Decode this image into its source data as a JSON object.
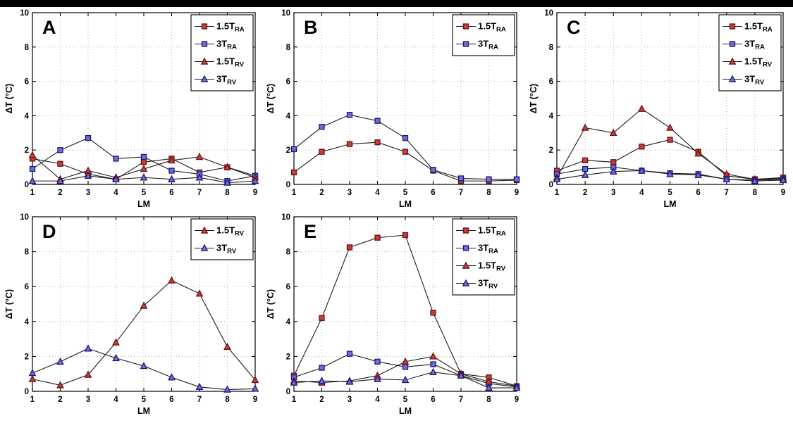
{
  "page": {
    "background": "#ffffff",
    "top_bar_color": "#000000"
  },
  "styles": {
    "line_color": "#1a1a1a",
    "grid_color": "#9f9f9f",
    "axis_color": "#000000",
    "series_styles": {
      "ra15": {
        "marker": "square",
        "fill": "#bf403e",
        "edge": "#6e0f0f",
        "label_main": "1.5T",
        "label_sub": "RA"
      },
      "ra3": {
        "marker": "square",
        "fill": "#6f6fd0",
        "edge": "#16167d",
        "label_main": "3T",
        "label_sub": "RA"
      },
      "rv15": {
        "marker": "triangle",
        "fill": "#bf403e",
        "edge": "#6e0f0f",
        "label_main": "1.5T",
        "label_sub": "RV"
      },
      "rv3": {
        "marker": "triangle",
        "fill": "#6f6fd0",
        "edge": "#16167d",
        "label_main": "3T",
        "label_sub": "RV"
      }
    }
  },
  "chart_data": [
    {
      "id": "A",
      "type": "line",
      "panel_label": "A",
      "xlabel": "LM",
      "ylabel": "ΔT (°C)",
      "x": [
        1,
        2,
        3,
        4,
        5,
        6,
        7,
        8,
        9
      ],
      "xlim": [
        1,
        9
      ],
      "ylim": [
        0,
        10
      ],
      "xticks": [
        1,
        2,
        3,
        4,
        5,
        6,
        7,
        8,
        9
      ],
      "yticks": [
        0,
        2,
        4,
        6,
        8,
        10
      ],
      "grid": true,
      "legend_position": "top-right",
      "series": [
        {
          "name": "1.5T_RA",
          "style": "ra15",
          "values": [
            1.5,
            1.2,
            0.6,
            0.3,
            1.3,
            1.5,
            0.7,
            1.0,
            0.5
          ]
        },
        {
          "name": "3T_RA",
          "style": "ra3",
          "values": [
            0.9,
            2.0,
            2.7,
            1.5,
            1.6,
            0.8,
            0.6,
            0.2,
            0.5
          ]
        },
        {
          "name": "1.5T_RV",
          "style": "rv15",
          "values": [
            1.7,
            0.3,
            0.8,
            0.4,
            0.9,
            1.4,
            1.6,
            1.0,
            0.4
          ]
        },
        {
          "name": "3T_RV",
          "style": "rv3",
          "values": [
            0.2,
            0.2,
            0.5,
            0.3,
            0.4,
            0.3,
            0.4,
            0.1,
            0.2
          ]
        }
      ]
    },
    {
      "id": "B",
      "type": "line",
      "panel_label": "B",
      "xlabel": "LM",
      "ylabel": "ΔT (°C)",
      "x": [
        1,
        2,
        3,
        4,
        5,
        6,
        7,
        8,
        9
      ],
      "xlim": [
        1,
        9
      ],
      "ylim": [
        0,
        10
      ],
      "xticks": [
        1,
        2,
        3,
        4,
        5,
        6,
        7,
        8,
        9
      ],
      "yticks": [
        0,
        2,
        4,
        6,
        8,
        10
      ],
      "grid": true,
      "legend_position": "top-right",
      "series": [
        {
          "name": "1.5T_RA",
          "style": "ra15",
          "values": [
            0.7,
            1.9,
            2.35,
            2.45,
            1.9,
            0.8,
            0.2,
            0.2,
            0.25
          ]
        },
        {
          "name": "3T_RA",
          "style": "ra3",
          "values": [
            2.05,
            3.35,
            4.05,
            3.7,
            2.7,
            0.85,
            0.35,
            0.3,
            0.3
          ]
        }
      ]
    },
    {
      "id": "C",
      "type": "line",
      "panel_label": "C",
      "xlabel": "LM",
      "ylabel": "ΔT (°C)",
      "x": [
        1,
        2,
        3,
        4,
        5,
        6,
        7,
        8,
        9
      ],
      "xlim": [
        1,
        9
      ],
      "ylim": [
        0,
        10
      ],
      "xticks": [
        1,
        2,
        3,
        4,
        5,
        6,
        7,
        8,
        9
      ],
      "yticks": [
        0,
        2,
        4,
        6,
        8,
        10
      ],
      "grid": true,
      "legend_position": "top-right",
      "series": [
        {
          "name": "1.5T_RA",
          "style": "ra15",
          "values": [
            0.8,
            1.4,
            1.3,
            2.2,
            2.6,
            1.9,
            0.5,
            0.3,
            0.4
          ]
        },
        {
          "name": "3T_RA",
          "style": "ra3",
          "values": [
            0.6,
            0.9,
            1.0,
            0.8,
            0.65,
            0.6,
            0.3,
            0.25,
            0.3
          ]
        },
        {
          "name": "1.5T_RV",
          "style": "rv15",
          "values": [
            0.4,
            3.3,
            3.0,
            4.4,
            3.3,
            1.8,
            0.6,
            0.3,
            0.35
          ]
        },
        {
          "name": "3T_RV",
          "style": "rv3",
          "values": [
            0.3,
            0.55,
            0.75,
            0.8,
            0.6,
            0.55,
            0.3,
            0.2,
            0.25
          ]
        }
      ]
    },
    {
      "id": "D",
      "type": "line",
      "panel_label": "D",
      "xlabel": "LM",
      "ylabel": "ΔT (°C)",
      "x": [
        1,
        2,
        3,
        4,
        5,
        6,
        7,
        8,
        9
      ],
      "xlim": [
        1,
        9
      ],
      "ylim": [
        0,
        10
      ],
      "xticks": [
        1,
        2,
        3,
        4,
        5,
        6,
        7,
        8,
        9
      ],
      "yticks": [
        0,
        2,
        4,
        6,
        8,
        10
      ],
      "grid": true,
      "legend_position": "top-right",
      "series": [
        {
          "name": "1.5T_RV",
          "style": "rv15",
          "values": [
            0.7,
            0.35,
            0.95,
            2.8,
            4.9,
            6.35,
            5.6,
            2.55,
            0.65
          ]
        },
        {
          "name": "3T_RV",
          "style": "rv3",
          "values": [
            1.05,
            1.7,
            2.45,
            1.9,
            1.45,
            0.8,
            0.25,
            0.1,
            0.15
          ]
        }
      ]
    },
    {
      "id": "E",
      "type": "line",
      "panel_label": "E",
      "xlabel": "LM",
      "ylabel": "ΔT (°C)",
      "x": [
        1,
        2,
        3,
        4,
        5,
        6,
        7,
        8,
        9
      ],
      "xlim": [
        1,
        9
      ],
      "ylim": [
        0,
        10
      ],
      "xticks": [
        1,
        2,
        3,
        4,
        5,
        6,
        7,
        8,
        9
      ],
      "yticks": [
        0,
        2,
        4,
        6,
        8,
        10
      ],
      "grid": true,
      "legend_position": "top-right",
      "series": [
        {
          "name": "1.5T_RA",
          "style": "ra15",
          "values": [
            0.9,
            4.2,
            8.25,
            8.8,
            8.95,
            4.5,
            1.0,
            0.8,
            0.3
          ]
        },
        {
          "name": "3T_RA",
          "style": "ra3",
          "values": [
            0.8,
            1.35,
            2.15,
            1.7,
            1.4,
            1.55,
            0.9,
            0.45,
            0.25
          ]
        },
        {
          "name": "1.5T_RV",
          "style": "rv15",
          "values": [
            0.6,
            0.5,
            0.6,
            0.9,
            1.7,
            2.0,
            1.0,
            0.55,
            0.3
          ]
        },
        {
          "name": "3T_RV",
          "style": "rv3",
          "values": [
            0.5,
            0.6,
            0.55,
            0.7,
            0.65,
            1.1,
            0.9,
            0.2,
            0.2
          ]
        }
      ]
    }
  ]
}
